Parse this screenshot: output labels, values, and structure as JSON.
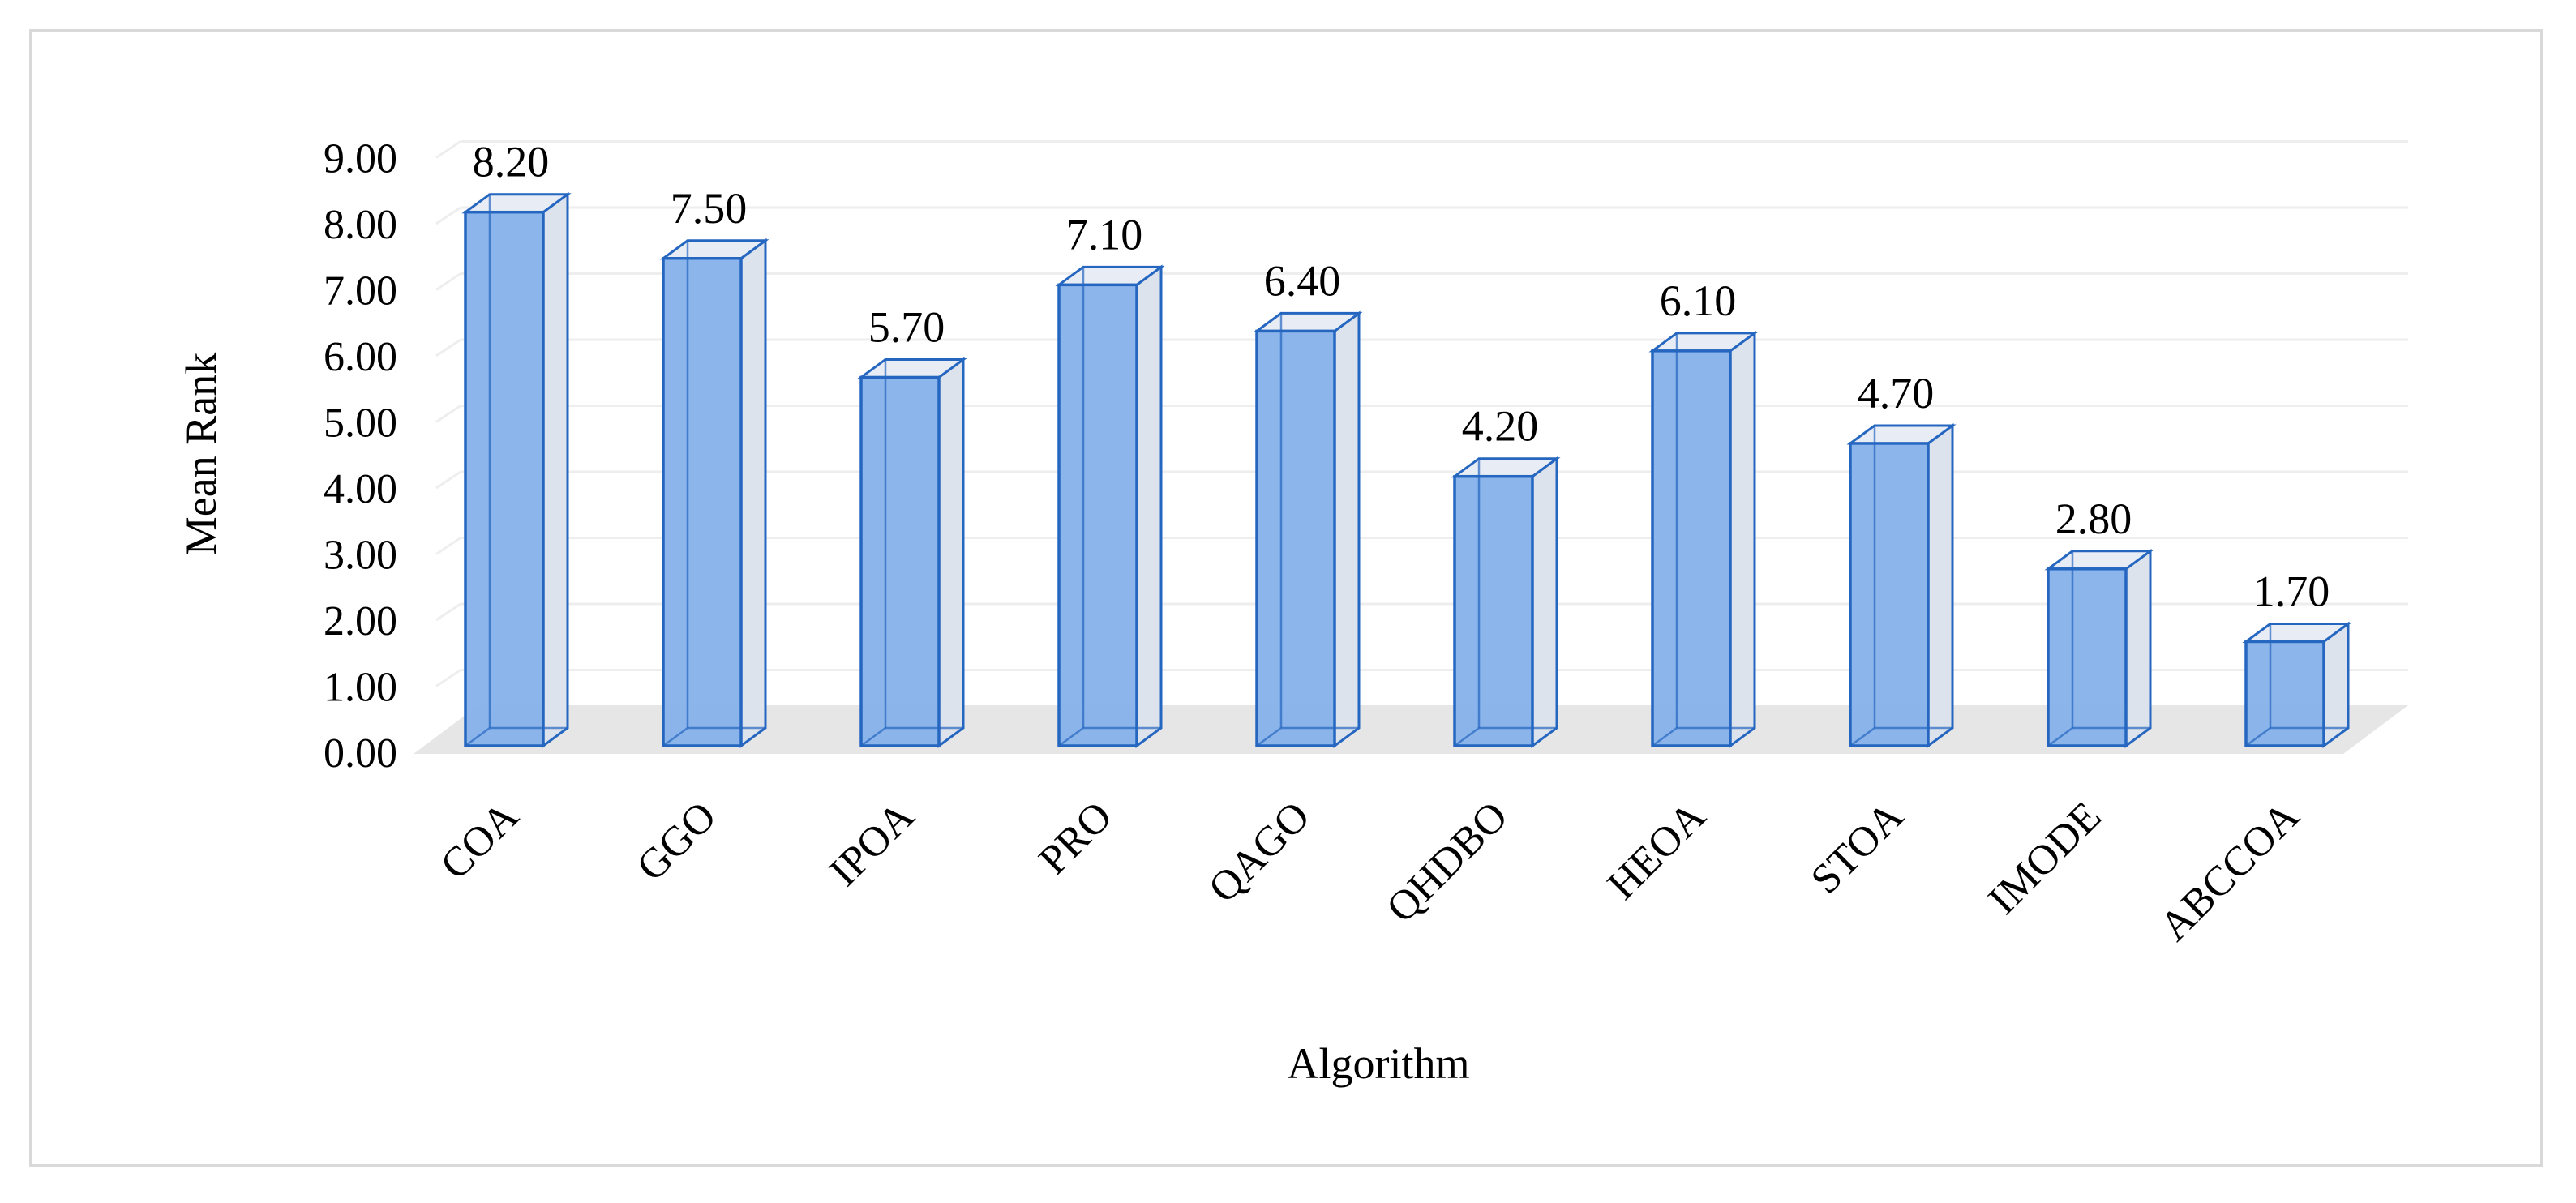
{
  "chart_data": {
    "type": "bar",
    "style": "3d-column",
    "title": "",
    "xlabel": "Algorithm",
    "ylabel": "Mean Rank",
    "categories": [
      "COA",
      "GGO",
      "IPOA",
      "PRO",
      "QAGO",
      "QHDBO",
      "HEOA",
      "STOA",
      "IMODE",
      "ABCCOA"
    ],
    "values": [
      8.2,
      7.5,
      5.7,
      7.1,
      6.4,
      4.2,
      6.1,
      4.7,
      2.8,
      1.7
    ],
    "data_labels": [
      "8.20",
      "7.50",
      "5.70",
      "7.10",
      "6.40",
      "4.20",
      "6.10",
      "4.70",
      "2.80",
      "1.70"
    ],
    "yticks": [
      "0.00",
      "1.00",
      "2.00",
      "3.00",
      "4.00",
      "5.00",
      "6.00",
      "7.00",
      "8.00",
      "9.00"
    ],
    "ylim": [
      0,
      9
    ],
    "grid": true,
    "legend": "none",
    "colors": {
      "bar_front": "#86b1ea",
      "bar_side": "#dde3ec",
      "bar_top": "#e8edf5",
      "bar_edge": "#2566c0",
      "grid": "#eeeeee",
      "floor": "#e6e6e6",
      "frame": "#d9d9d9"
    }
  }
}
